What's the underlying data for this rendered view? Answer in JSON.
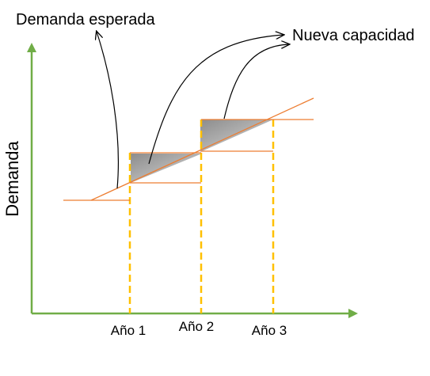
{
  "labels": {
    "expected_demand": "Demanda esperada",
    "new_capacity": "Nueva capacidad",
    "y_axis": "Demanda",
    "years": [
      "Año 1",
      "Año 2",
      "Año 3"
    ]
  },
  "colors": {
    "axis": "#70ad47",
    "demand_line": "#ed7d31",
    "capacity_line": "#ed7d31",
    "dashed_year": "#ffc000",
    "shortfall_fill": "#a6a6a6",
    "annotation_arrow": "#000000"
  }
}
